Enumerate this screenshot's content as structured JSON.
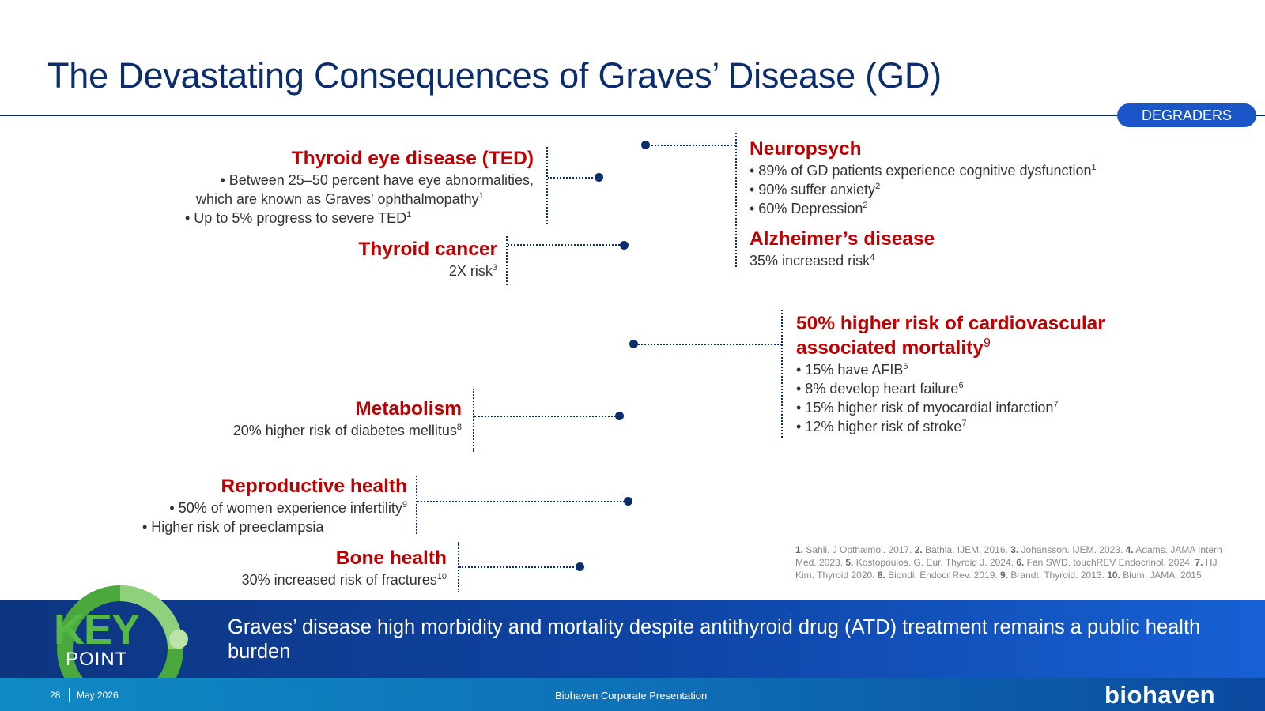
{
  "title": "The Devastating Consequences of Graves’ Disease (GD)",
  "badge": "DEGRADERS",
  "ted": {
    "heading": "Thyroid eye disease (TED)",
    "line1": "• Between 25–50 percent have eye abnormalities,",
    "line2": "which are known as Graves' ophthalmopathy",
    "line2_sup": "1",
    "line3": "• Up to 5% progress to severe TED",
    "line3_sup": "1"
  },
  "cancer": {
    "heading": "Thyroid cancer",
    "line1": "2X risk",
    "line1_sup": "3"
  },
  "neuro": {
    "heading": "Neuropsych",
    "items": [
      {
        "text": "• 89% of GD patients experience cognitive dysfunction",
        "sup": "1"
      },
      {
        "text": "• 90% suffer anxiety",
        "sup": "2"
      },
      {
        "text": "• 60% Depression",
        "sup": "2"
      }
    ]
  },
  "alz": {
    "heading": "Alzheimer’s disease",
    "line1": "35% increased risk",
    "line1_sup": "4"
  },
  "cardio": {
    "heading1": "50% higher risk of cardiovascular",
    "heading2": "associated mortality",
    "heading_sup": "9",
    "items": [
      {
        "text": "• 15% have AFIB",
        "sup": "5"
      },
      {
        "text": "• 8% develop heart failure",
        "sup": "6"
      },
      {
        "text": "• 15% higher risk of myocardial infarction",
        "sup": "7"
      },
      {
        "text": "• 12% higher risk of stroke",
        "sup": "7"
      }
    ]
  },
  "metab": {
    "heading": "Metabolism",
    "line1": "20% higher risk of diabetes mellitus",
    "line1_sup": "8"
  },
  "repro": {
    "heading": "Reproductive health",
    "line1": "• 50% of women experience infertility",
    "line1_sup": "9",
    "line2": "• Higher risk of preeclampsia"
  },
  "bone": {
    "heading": "Bone health",
    "line1": "30% increased risk of fractures",
    "line1_sup": "10"
  },
  "references": [
    {
      "n": "1.",
      "t": " Sahli. J Opthalmol. 2017. "
    },
    {
      "n": "2.",
      "t": " Bathla. IJEM. 2016. "
    },
    {
      "n": "3.",
      "t": " Johansson. IJEM. 2023. "
    },
    {
      "n": "4.",
      "t": " Adams. JAMA Intern Med. 2023. "
    },
    {
      "n": "5.",
      "t": " Kostopoulos. G. Eur. Thyroid J. 2024. "
    },
    {
      "n": "6.",
      "t": " Fan SWD. touchREV Endocrinol. 2024. "
    },
    {
      "n": "7.",
      "t": " HJ Kim. Thyroid 2020. "
    },
    {
      "n": "8.",
      "t": " Biondi. Endocr Rev. 2019. "
    },
    {
      "n": "9.",
      "t": " Brandt. Thyroid. 2013. "
    },
    {
      "n": "10.",
      "t": " Blum. JAMA. 2015."
    }
  ],
  "key_point": {
    "big": "KEY",
    "small": "POINT",
    "text": "Graves’ disease high morbidity and mortality despite antithyroid drug (ATD) treatment remains a public health burden"
  },
  "footer": {
    "page": "28",
    "date": "May 2026",
    "center": "Biohaven Corporate Presentation",
    "logo": "biohaven"
  },
  "colors": {
    "title": "#0b2d6e",
    "heading_red": "#c00000",
    "badge": "#1a56c8",
    "key_green": "#56b947"
  }
}
